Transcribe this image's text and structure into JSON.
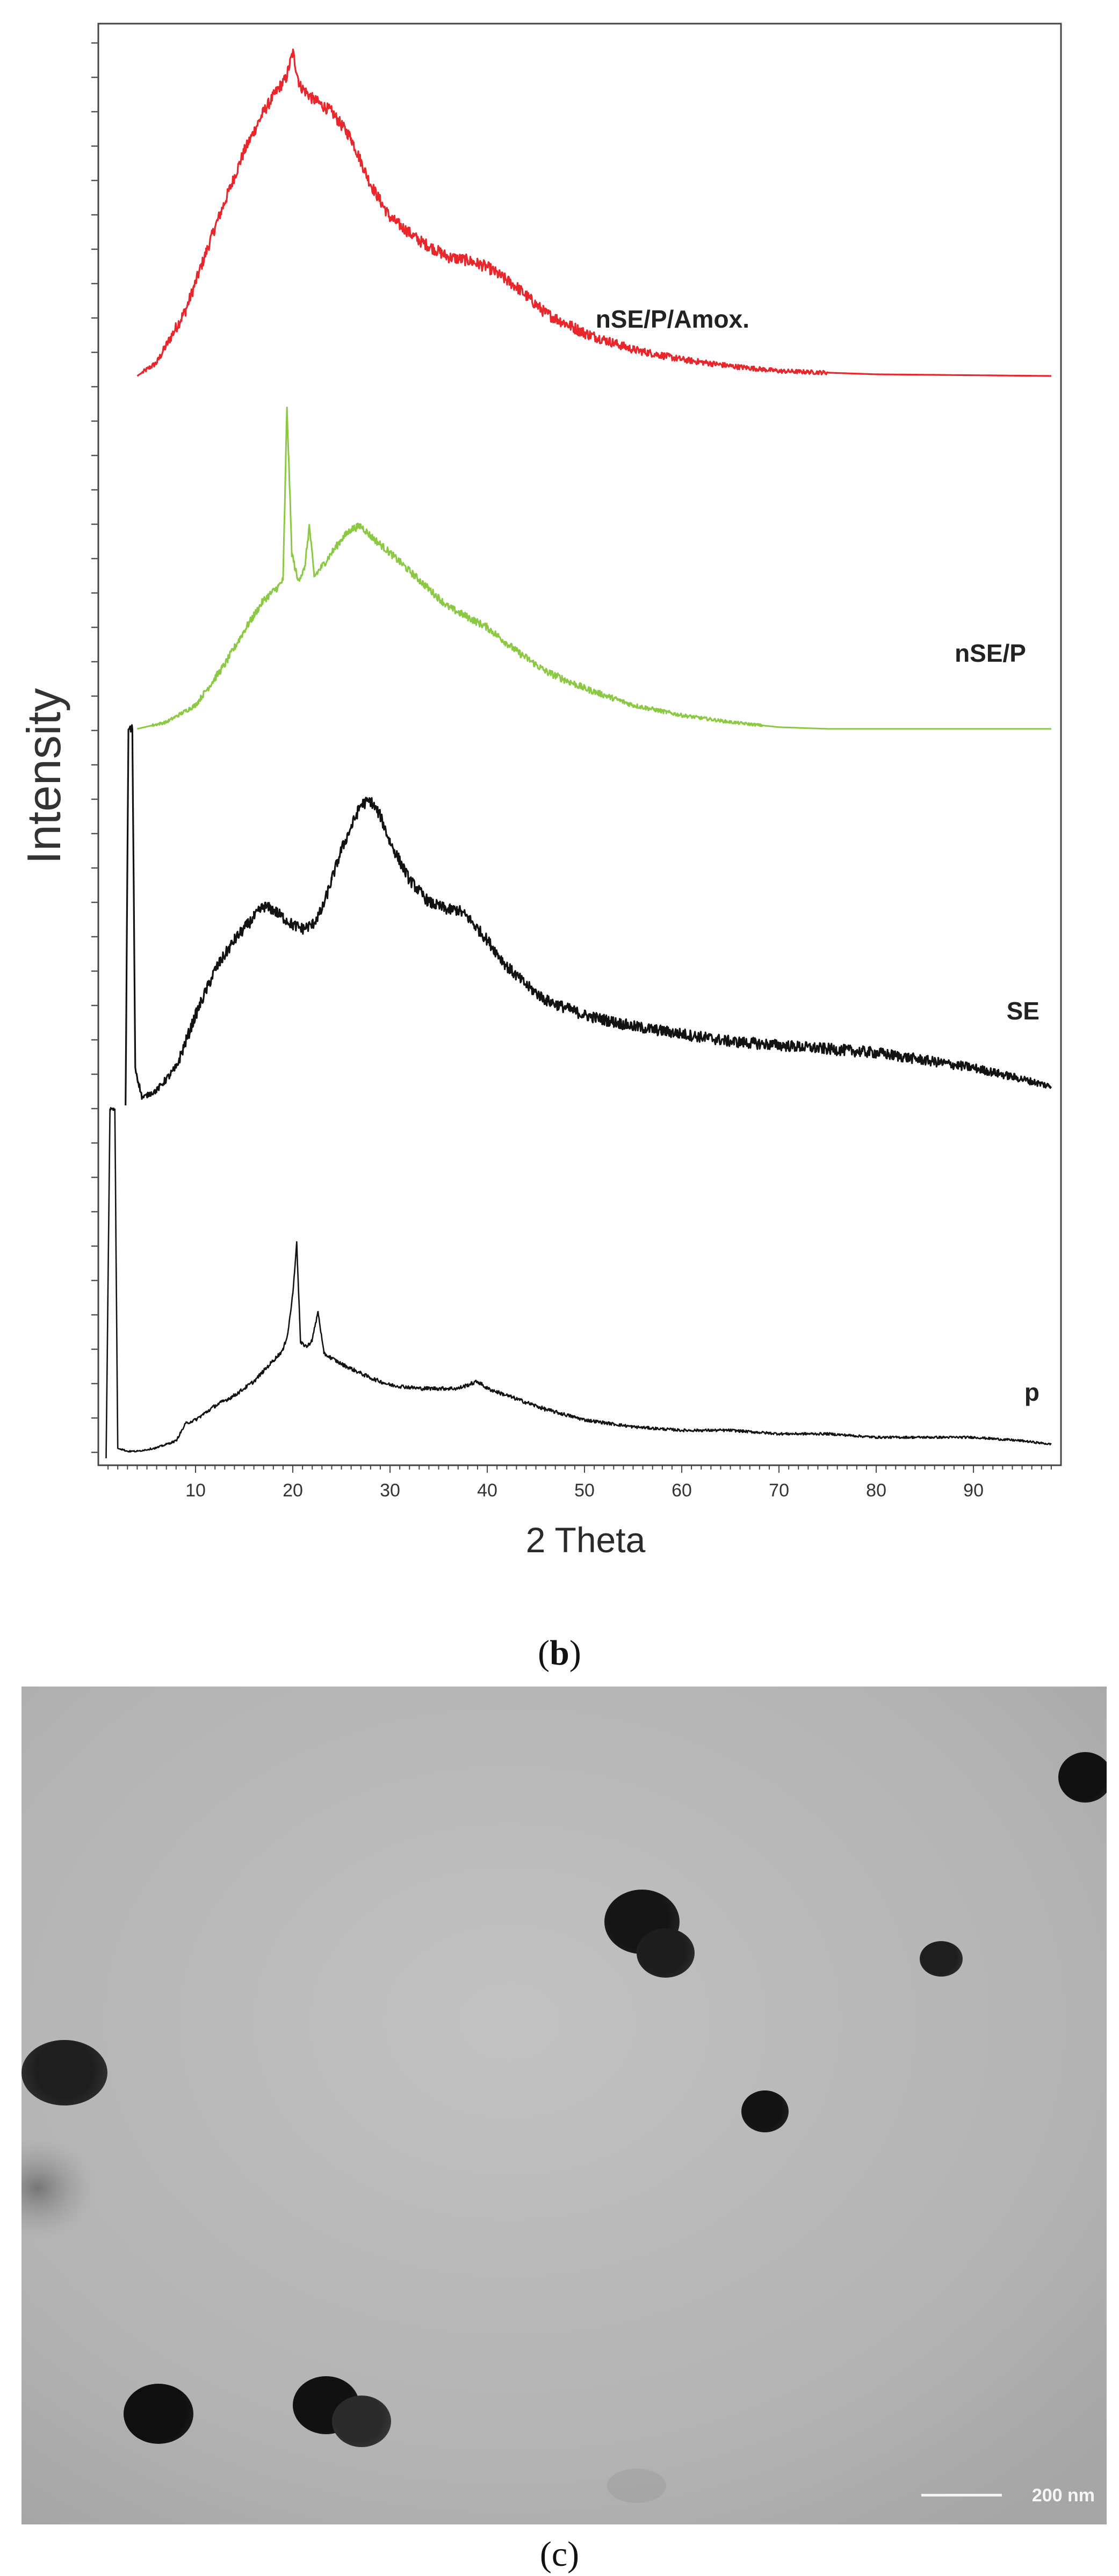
{
  "chart_data": {
    "type": "line",
    "xlabel": "2 Theta",
    "ylabel": "Intensity",
    "xlim": [
      0,
      99
    ],
    "x_ticks": [
      10,
      20,
      30,
      40,
      50,
      60,
      70,
      80,
      90
    ],
    "y_tick_labels": false,
    "grid": false,
    "legend": "labels on curves",
    "series": [
      {
        "name": "nSE/P/Amox.",
        "color": "#e8262b",
        "points": [
          [
            4,
            0
          ],
          [
            6,
            4
          ],
          [
            9,
            20
          ],
          [
            12,
            45
          ],
          [
            15,
            68
          ],
          [
            17,
            80
          ],
          [
            18.5,
            87
          ],
          [
            19.3,
            90
          ],
          [
            20,
            98
          ],
          [
            20.7,
            88
          ],
          [
            22,
            84
          ],
          [
            24,
            80
          ],
          [
            26,
            72
          ],
          [
            28,
            58
          ],
          [
            30,
            48
          ],
          [
            33,
            41
          ],
          [
            36,
            36
          ],
          [
            38,
            35
          ],
          [
            40,
            33
          ],
          [
            43,
            27
          ],
          [
            46,
            19
          ],
          [
            50,
            13
          ],
          [
            55,
            8
          ],
          [
            60,
            5
          ],
          [
            65,
            3
          ],
          [
            70,
            1.5
          ],
          [
            80,
            0.5
          ],
          [
            98,
            0
          ]
        ]
      },
      {
        "name": "nSE/P",
        "color": "#8bc943",
        "points": [
          [
            4,
            0
          ],
          [
            7,
            2
          ],
          [
            10,
            7
          ],
          [
            13,
            19
          ],
          [
            15,
            29
          ],
          [
            17,
            38
          ],
          [
            18.5,
            42
          ],
          [
            19,
            44
          ],
          [
            19.4,
            95
          ],
          [
            19.9,
            52
          ],
          [
            20.5,
            44
          ],
          [
            21.2,
            47
          ],
          [
            21.7,
            60
          ],
          [
            22.2,
            45
          ],
          [
            23,
            48
          ],
          [
            24,
            52
          ],
          [
            25,
            56
          ],
          [
            26,
            59
          ],
          [
            27,
            60
          ],
          [
            28,
            57
          ],
          [
            30,
            52
          ],
          [
            33,
            44
          ],
          [
            36,
            36
          ],
          [
            38,
            33
          ],
          [
            40,
            30
          ],
          [
            43,
            23
          ],
          [
            46,
            17
          ],
          [
            50,
            12
          ],
          [
            55,
            7
          ],
          [
            60,
            4
          ],
          [
            65,
            2
          ],
          [
            70,
            0.5
          ],
          [
            75,
            0
          ],
          [
            98,
            0
          ]
        ]
      },
      {
        "name": "SE",
        "color": "#121212",
        "points": [
          [
            2.8,
            0
          ],
          [
            3.1,
            100
          ],
          [
            3.5,
            100
          ],
          [
            3.8,
            10
          ],
          [
            4.5,
            2
          ],
          [
            6,
            4
          ],
          [
            8,
            10
          ],
          [
            10,
            24
          ],
          [
            12,
            36
          ],
          [
            14,
            44
          ],
          [
            16,
            50
          ],
          [
            17,
            53
          ],
          [
            18,
            52
          ],
          [
            19,
            50
          ],
          [
            20,
            48
          ],
          [
            21,
            47
          ],
          [
            22,
            48
          ],
          [
            23,
            52
          ],
          [
            24,
            60
          ],
          [
            25,
            68
          ],
          [
            26,
            74
          ],
          [
            27,
            80
          ],
          [
            28,
            81
          ],
          [
            29,
            77
          ],
          [
            30,
            70
          ],
          [
            32,
            60
          ],
          [
            34,
            54
          ],
          [
            36,
            52
          ],
          [
            37,
            52
          ],
          [
            38,
            50
          ],
          [
            40,
            44
          ],
          [
            42,
            37
          ],
          [
            44,
            32
          ],
          [
            46,
            28
          ],
          [
            48,
            26
          ],
          [
            50,
            24
          ],
          [
            55,
            21
          ],
          [
            60,
            19
          ],
          [
            65,
            17
          ],
          [
            70,
            16
          ],
          [
            75,
            15
          ],
          [
            80,
            14
          ],
          [
            85,
            12
          ],
          [
            90,
            10
          ],
          [
            95,
            7
          ],
          [
            98,
            5
          ]
        ]
      },
      {
        "name": "p",
        "color": "#121212",
        "points": [
          [
            0.8,
            0
          ],
          [
            1.2,
            100
          ],
          [
            1.7,
            100
          ],
          [
            2,
            3
          ],
          [
            3,
            2
          ],
          [
            4,
            2
          ],
          [
            6,
            3
          ],
          [
            8,
            5
          ],
          [
            9,
            10
          ],
          [
            10,
            11
          ],
          [
            12,
            15
          ],
          [
            14,
            18
          ],
          [
            16,
            22
          ],
          [
            18,
            28
          ],
          [
            19,
            31
          ],
          [
            19.5,
            36
          ],
          [
            20,
            47
          ],
          [
            20.4,
            62
          ],
          [
            20.8,
            33
          ],
          [
            21.5,
            32
          ],
          [
            22,
            34
          ],
          [
            22.6,
            42
          ],
          [
            23.2,
            30
          ],
          [
            25,
            27
          ],
          [
            28,
            23
          ],
          [
            30,
            21
          ],
          [
            33,
            20
          ],
          [
            35,
            20
          ],
          [
            37,
            20
          ],
          [
            38,
            21
          ],
          [
            39,
            22
          ],
          [
            40,
            20
          ],
          [
            43,
            17
          ],
          [
            46,
            14
          ],
          [
            50,
            11
          ],
          [
            55,
            9
          ],
          [
            60,
            8
          ],
          [
            65,
            8
          ],
          [
            70,
            7
          ],
          [
            75,
            7
          ],
          [
            80,
            6
          ],
          [
            85,
            6
          ],
          [
            90,
            6
          ],
          [
            95,
            5
          ],
          [
            98,
            4
          ]
        ]
      }
    ]
  },
  "captions": {
    "b": "b",
    "c": "c"
  },
  "tem": {
    "scale_label": "200 nm"
  }
}
